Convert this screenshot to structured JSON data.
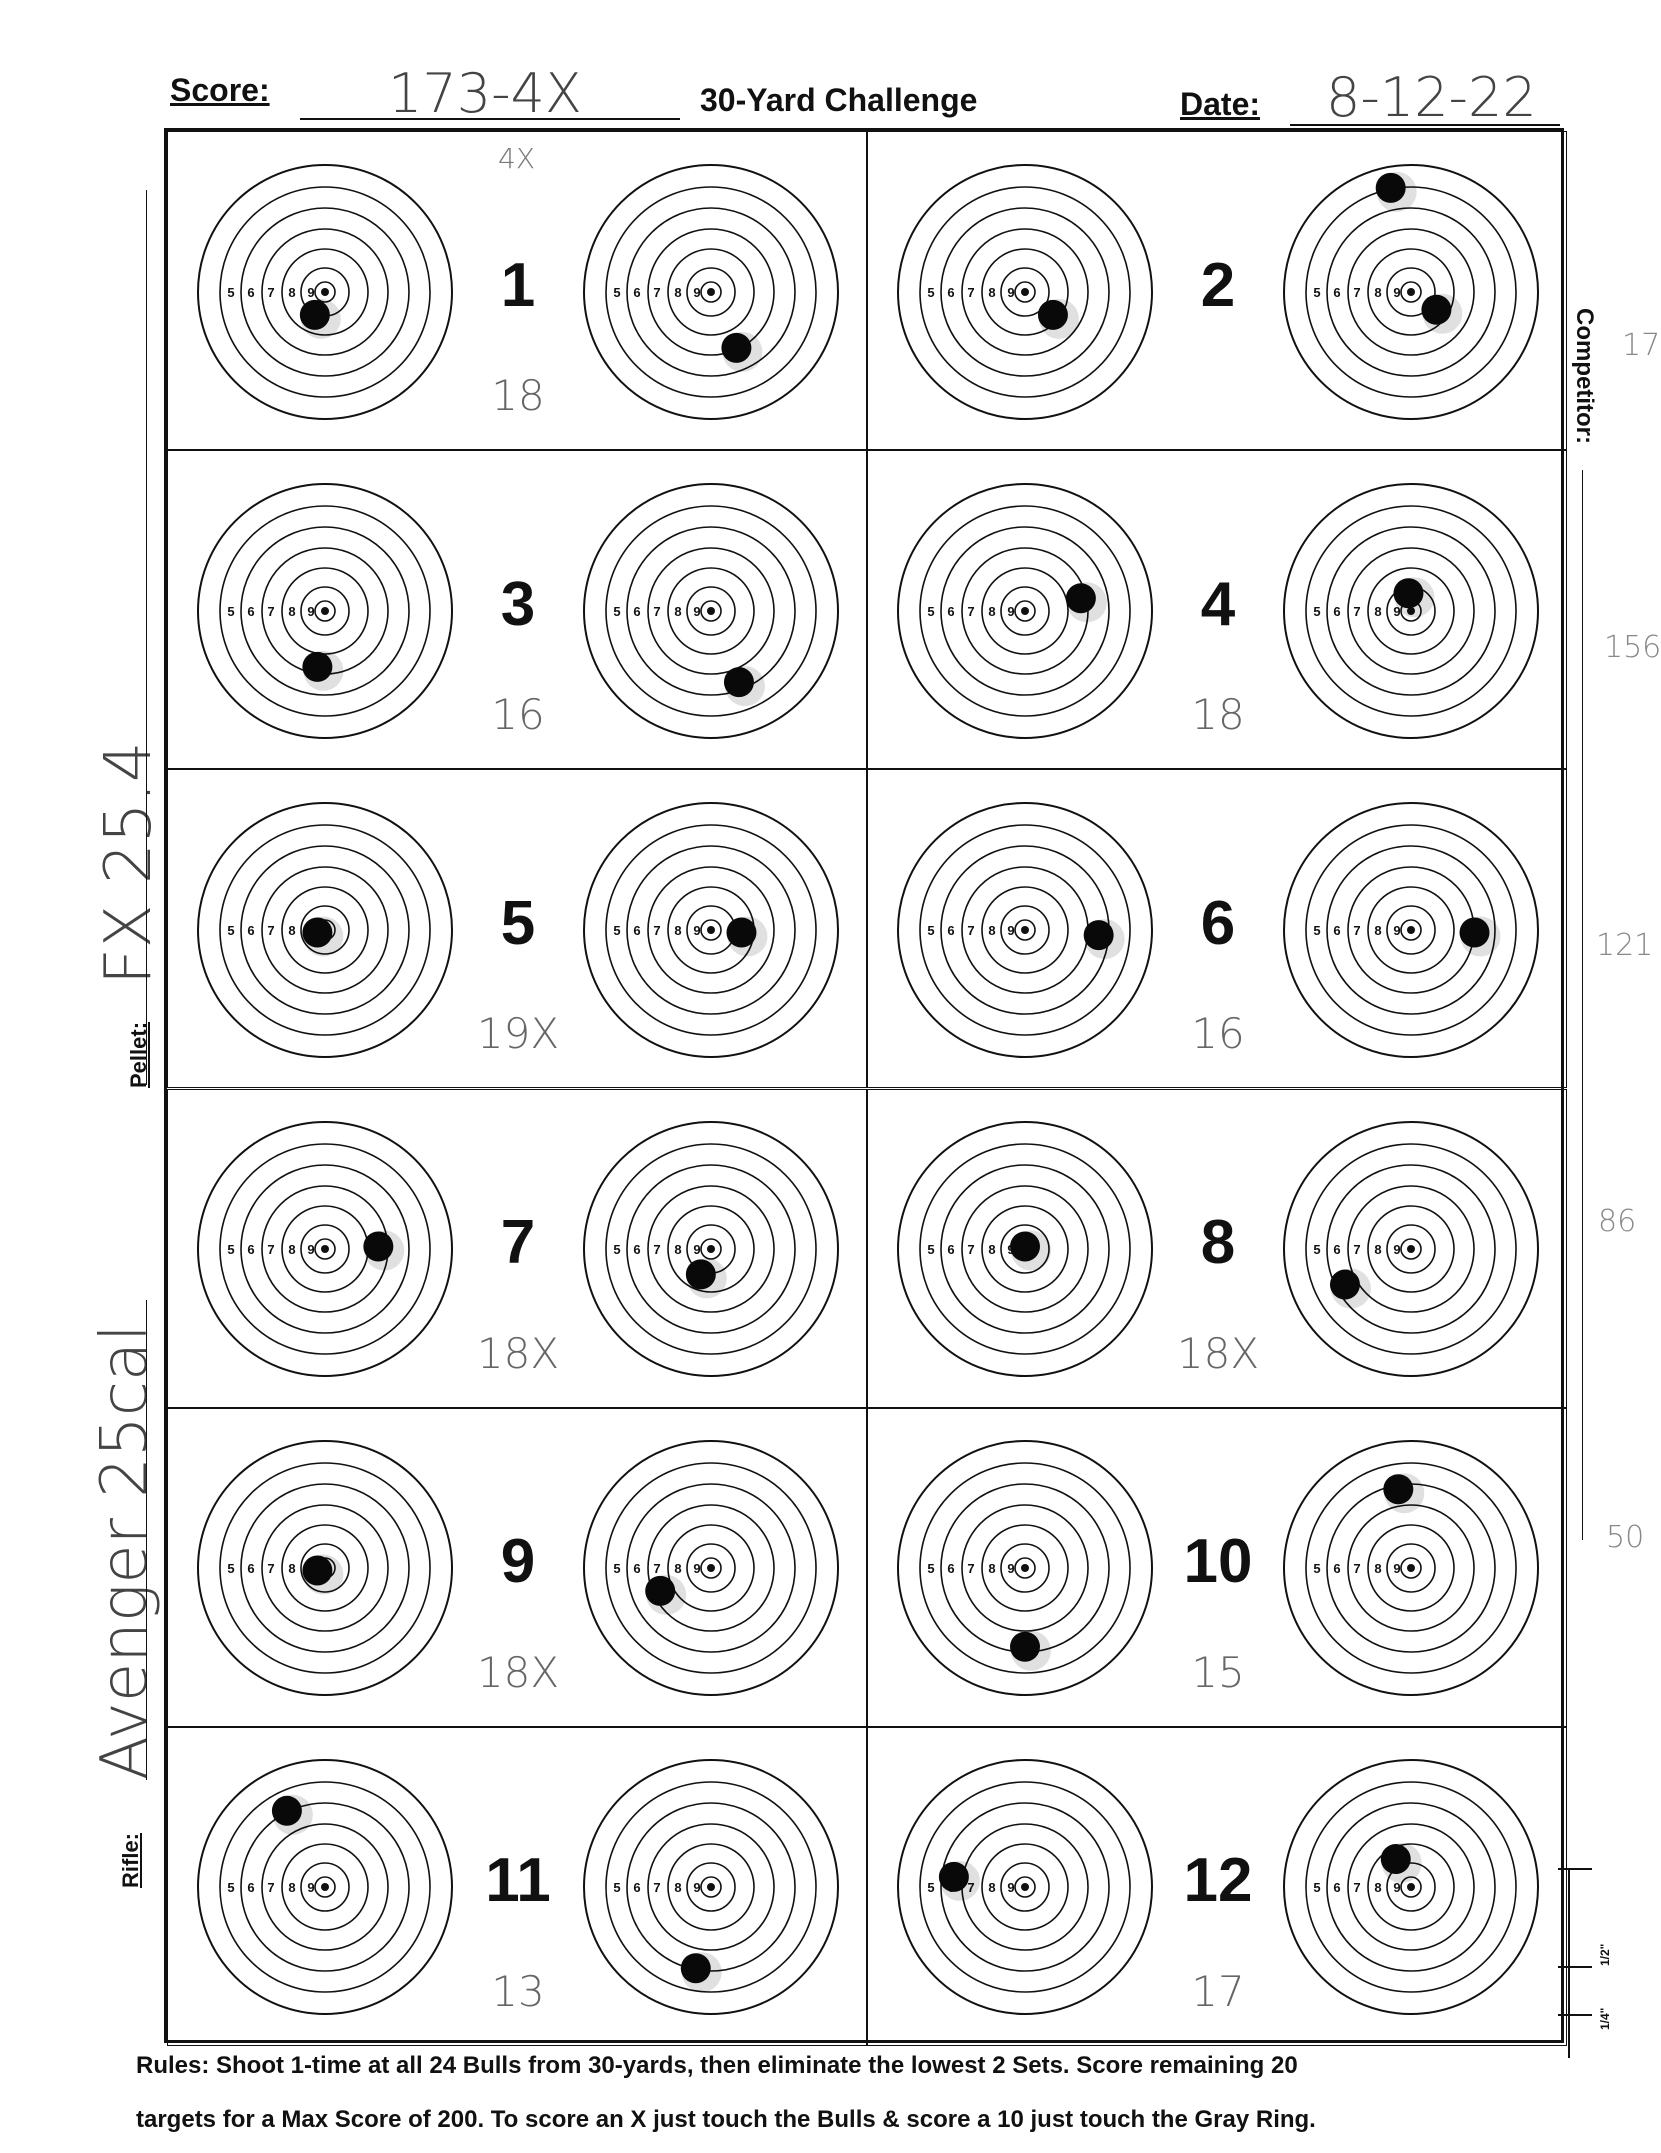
{
  "header": {
    "score_label": "Score:",
    "score_value": "173-4X",
    "title": "30-Yard Challenge",
    "date_label": "Date:",
    "date_value": "8-12-22",
    "x_note": "4X"
  },
  "side": {
    "pellet_label": "Pellet:",
    "pellet_value": "FX 25.4",
    "rifle_label": "Rifle:",
    "rifle_value": "Avenger 25cal",
    "competitor_label": "Competitor:",
    "margin_numbers": [
      "17",
      "156",
      "121",
      "86",
      "50"
    ],
    "scale_marks": [
      "1/2\"",
      "1/4\""
    ]
  },
  "ring_labels": [
    "5",
    "6",
    "7",
    "8",
    "9"
  ],
  "sets": [
    {
      "number": "1",
      "score": "18",
      "holes": [
        [
          -0.08,
          0.18
        ],
        [
          0.2,
          0.44
        ]
      ]
    },
    {
      "number": "2",
      "score": "",
      "holes": [
        [
          0.22,
          0.18
        ],
        [
          -0.16,
          -0.82
        ],
        [
          0.2,
          0.14
        ]
      ]
    },
    {
      "number": "3",
      "score": "16",
      "holes": [
        [
          -0.06,
          0.44
        ],
        [
          0.22,
          0.56
        ]
      ]
    },
    {
      "number": "4",
      "score": "18",
      "holes": [
        [
          0.44,
          -0.1
        ],
        [
          -0.02,
          -0.14
        ]
      ]
    },
    {
      "number": "5",
      "score": "19X",
      "holes": [
        [
          -0.06,
          0.02
        ],
        [
          0.24,
          0.02
        ]
      ]
    },
    {
      "number": "6",
      "score": "16",
      "holes": [
        [
          0.58,
          0.04
        ],
        [
          0.5,
          0.02
        ]
      ]
    },
    {
      "number": "7",
      "score": "18X",
      "holes": [
        [
          0.42,
          -0.02
        ],
        [
          -0.08,
          0.2
        ]
      ]
    },
    {
      "number": "8",
      "score": "18X",
      "holes": [
        [
          0.0,
          -0.02
        ],
        [
          -0.52,
          0.28
        ]
      ]
    },
    {
      "number": "9",
      "score": "18X",
      "holes": [
        [
          -0.06,
          0.02
        ],
        [
          -0.4,
          0.18
        ]
      ]
    },
    {
      "number": "10",
      "score": "15",
      "holes": [
        [
          0.0,
          0.62
        ],
        [
          -0.1,
          -0.62
        ]
      ]
    },
    {
      "number": "11",
      "score": "13",
      "holes": [
        [
          -0.3,
          -0.6
        ],
        [
          -0.12,
          0.64
        ]
      ]
    },
    {
      "number": "12",
      "score": "17",
      "holes": [
        [
          -0.56,
          -0.08
        ],
        [
          -0.12,
          -0.22
        ]
      ]
    }
  ],
  "rules": {
    "line1": "Rules: Shoot 1-time at all 24 Bulls from 30-yards, then eliminate the lowest 2 Sets. Score remaining 20",
    "line2": "targets for a Max Score of 200. To score an X just touch the Bulls & score a 10 just touch the Gray Ring."
  }
}
